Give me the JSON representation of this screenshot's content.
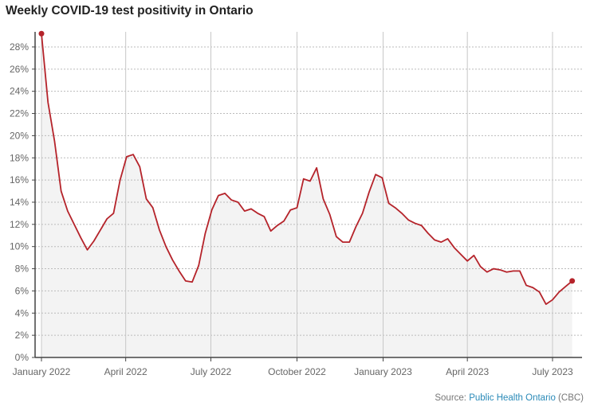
{
  "chart_data": {
    "type": "area",
    "title": "Weekly COVID-19 test positivity in Ontario",
    "xlabel": "",
    "ylabel": "",
    "ylim": [
      0,
      29
    ],
    "y_ticks": [
      0,
      2,
      4,
      6,
      8,
      10,
      12,
      14,
      16,
      18,
      20,
      22,
      24,
      26,
      28
    ],
    "y_tick_format": "%",
    "x_ticks": [
      {
        "date": "2022-01-01",
        "label": "January 2022"
      },
      {
        "date": "2022-04-01",
        "label": "April 2022"
      },
      {
        "date": "2022-07-01",
        "label": "July 2022"
      },
      {
        "date": "2022-10-01",
        "label": "October 2022"
      },
      {
        "date": "2023-01-01",
        "label": "January 2023"
      },
      {
        "date": "2023-04-01",
        "label": "April 2023"
      },
      {
        "date": "2023-07-01",
        "label": "July 2023"
      }
    ],
    "grid": {
      "horizontal": "dotted",
      "vertical": "solid"
    },
    "colors": {
      "line": "#b5232a",
      "fill": "#f3f3f3",
      "grid": "#c8c8c8"
    },
    "series": [
      {
        "x": [
          "2022-01-01",
          "2022-01-08",
          "2022-01-15",
          "2022-01-22",
          "2022-01-29",
          "2022-02-05",
          "2022-02-12",
          "2022-02-19",
          "2022-02-26",
          "2022-03-05",
          "2022-03-12",
          "2022-03-19",
          "2022-03-26",
          "2022-04-02",
          "2022-04-09",
          "2022-04-16",
          "2022-04-23",
          "2022-04-30",
          "2022-05-07",
          "2022-05-14",
          "2022-05-21",
          "2022-05-28",
          "2022-06-04",
          "2022-06-11",
          "2022-06-18",
          "2022-06-25",
          "2022-07-02",
          "2022-07-09",
          "2022-07-16",
          "2022-07-23",
          "2022-07-30",
          "2022-08-06",
          "2022-08-13",
          "2022-08-20",
          "2022-08-27",
          "2022-09-03",
          "2022-09-10",
          "2022-09-17",
          "2022-09-24",
          "2022-10-01",
          "2022-10-08",
          "2022-10-15",
          "2022-10-22",
          "2022-10-29",
          "2022-11-05",
          "2022-11-12",
          "2022-11-19",
          "2022-11-26",
          "2022-12-03",
          "2022-12-10",
          "2022-12-17",
          "2022-12-24",
          "2022-12-31",
          "2023-01-07",
          "2023-01-14",
          "2023-01-21",
          "2023-01-28",
          "2023-02-04",
          "2023-02-11",
          "2023-02-18",
          "2023-02-25",
          "2023-03-04",
          "2023-03-11",
          "2023-03-18",
          "2023-03-25",
          "2023-04-01",
          "2023-04-08",
          "2023-04-15",
          "2023-04-22",
          "2023-04-29",
          "2023-05-06",
          "2023-05-13",
          "2023-05-20",
          "2023-05-27",
          "2023-06-03",
          "2023-06-10",
          "2023-06-17",
          "2023-06-24",
          "2023-07-01",
          "2023-07-08",
          "2023-07-15",
          "2023-07-22"
        ],
        "values": [
          29.2,
          23.0,
          19.5,
          15.0,
          13.2,
          12.0,
          10.8,
          9.7,
          10.5,
          11.5,
          12.5,
          13.0,
          16.0,
          18.1,
          18.3,
          17.2,
          14.3,
          13.5,
          11.5,
          10.0,
          8.8,
          7.8,
          6.9,
          6.8,
          8.3,
          11.2,
          13.3,
          14.6,
          14.8,
          14.2,
          14.0,
          13.2,
          13.4,
          13.0,
          12.7,
          11.4,
          11.9,
          12.3,
          13.3,
          13.5,
          16.1,
          15.9,
          17.1,
          14.3,
          12.9,
          10.9,
          10.4,
          10.4,
          11.8,
          13.0,
          14.9,
          16.5,
          16.2,
          13.9,
          13.5,
          13.0,
          12.4,
          12.1,
          11.9,
          11.2,
          10.6,
          10.4,
          10.7,
          9.9,
          9.3,
          8.7,
          9.2,
          8.2,
          7.7,
          8.0,
          7.9,
          7.7,
          7.8,
          7.8,
          6.5,
          6.3,
          5.9,
          4.8,
          5.2,
          5.9,
          6.4,
          6.9
        ]
      }
    ],
    "markers": "first and last point"
  },
  "source": {
    "prefix": "Source: ",
    "link": "Public Health Ontario",
    "suffix": " (CBC)"
  }
}
